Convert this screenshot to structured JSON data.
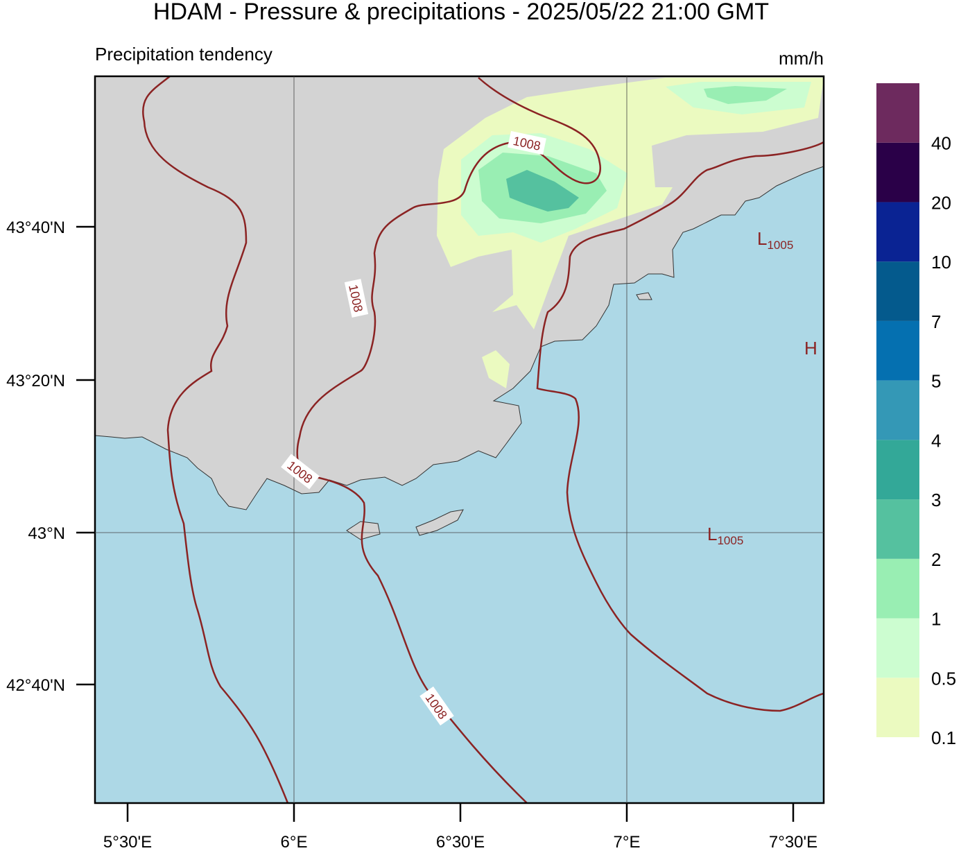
{
  "header": {
    "title": "HDAM - Pressure & precipitations  -  2025/05/22  21:00 GMT",
    "subtitle": "Precipitation tendency",
    "units": "mm/h"
  },
  "axes": {
    "lat_labels": [
      "43°40'N",
      "43°20'N",
      "43°N",
      "42°40'N"
    ],
    "lon_labels": [
      "5°30'E",
      "6°E",
      "6°30'E",
      "7°E",
      "7°30'E"
    ]
  },
  "colorbar": {
    "labels": [
      "0.1",
      "0.5",
      "1",
      "2",
      "3",
      "4",
      "5",
      "7",
      "10",
      "20",
      "40"
    ],
    "colors": [
      "#ebfac0",
      "#ccfdd0",
      "#99eeb3",
      "#55c19f",
      "#33a898",
      "#3498b6",
      "#0570b0",
      "#045a8d",
      "#0a2393",
      "#2a0048",
      "#6d2a5e"
    ]
  },
  "isobar_labels": [
    "1008",
    "1008",
    "1008",
    "1008"
  ],
  "pressure_centers": [
    {
      "letter": "L",
      "value": "1005"
    },
    {
      "letter": "L",
      "value": "1005"
    },
    {
      "letter": "H"
    }
  ]
}
